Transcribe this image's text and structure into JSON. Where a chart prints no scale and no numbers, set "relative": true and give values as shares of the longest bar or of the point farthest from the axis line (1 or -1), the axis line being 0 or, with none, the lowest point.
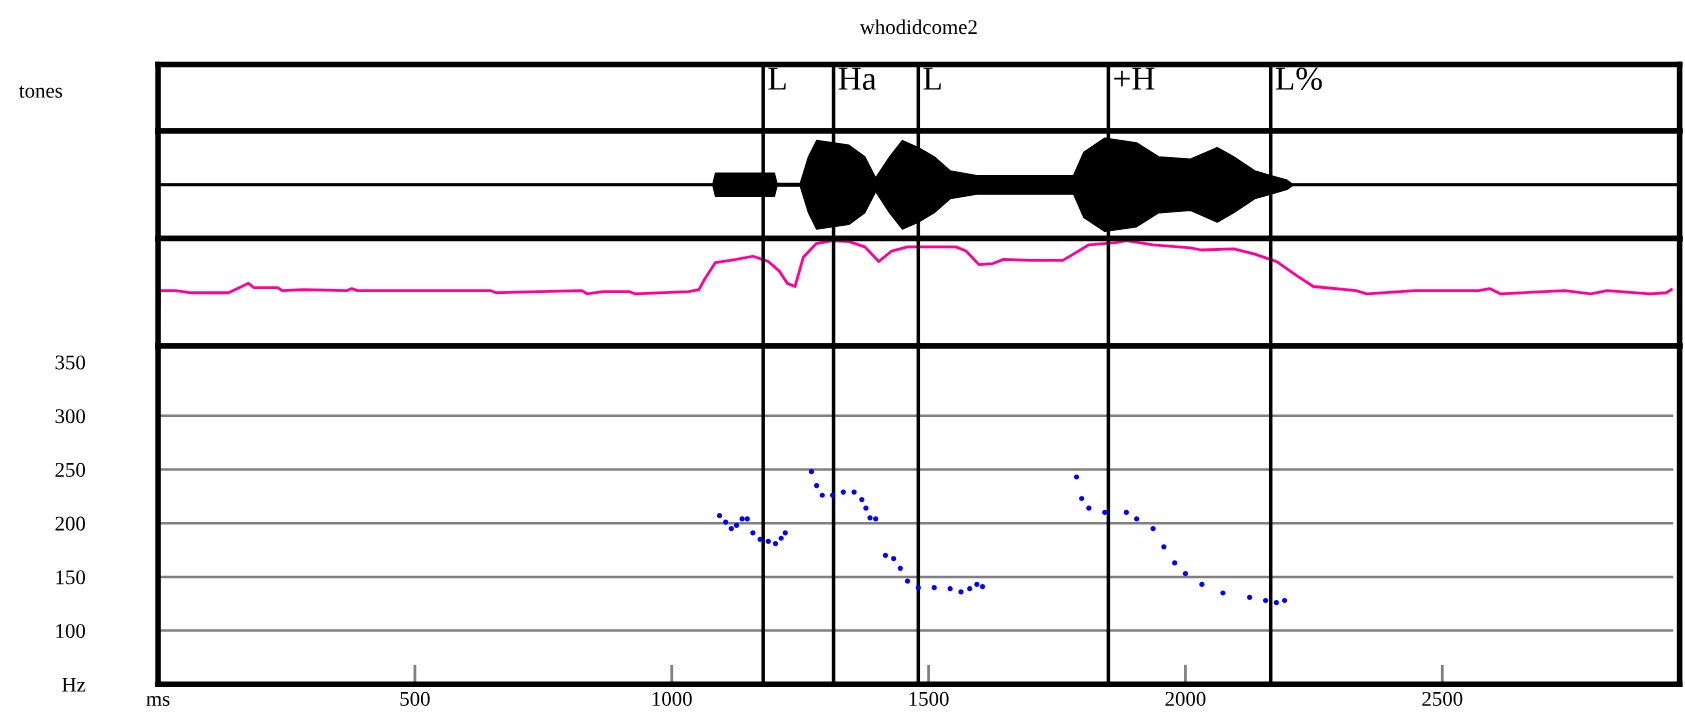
{
  "chart_data": [
    {
      "type": "other",
      "title": "whodidcome2",
      "ylabel": "tones",
      "annotations": [
        "L",
        "Ha",
        "L",
        "+H",
        "L%"
      ]
    },
    {
      "type": "area",
      "relative": true,
      "xlim": [
        0,
        2962
      ],
      "x": [
        0,
        1080,
        1085,
        1200,
        1205,
        1250,
        1266,
        1282,
        1345,
        1376,
        1397,
        1424,
        1449,
        1480,
        1511,
        1542,
        1594,
        1782,
        1802,
        1843,
        1905,
        1948,
        2010,
        2062,
        2094,
        2135,
        2166,
        2198,
        2208,
        2962
      ],
      "series": [
        {
          "color": "#000000",
          "values": [
            0.02,
            0.02,
            0.25,
            0.25,
            0.03,
            0.03,
            0.6,
            0.95,
            0.85,
            0.6,
            0.15,
            0.6,
            0.95,
            0.8,
            0.6,
            0.3,
            0.2,
            0.2,
            0.7,
            1.0,
            0.9,
            0.6,
            0.55,
            0.8,
            0.6,
            0.3,
            0.2,
            0.1,
            0.02,
            0.02
          ]
        }
      ],
      "ref_lines": [
        {
          "axis": "x",
          "value": 1178
        },
        {
          "axis": "x",
          "value": 1315
        },
        {
          "axis": "x",
          "value": 1480
        },
        {
          "axis": "x",
          "value": 1850
        },
        {
          "axis": "x",
          "value": 2166
        }
      ]
    },
    {
      "type": "line",
      "relative": true,
      "xlim": [
        0,
        2962
      ],
      "x": [
        0,
        3,
        34,
        65,
        137,
        159,
        176,
        186,
        232,
        242,
        283,
        367,
        377,
        388,
        648,
        658,
        825,
        835,
        866,
        918,
        928,
        1033,
        1053,
        1064,
        1085,
        1126,
        1158,
        1188,
        1209,
        1225,
        1240,
        1256,
        1281,
        1313,
        1345,
        1376,
        1403,
        1428,
        1459,
        1490,
        1553,
        1573,
        1598,
        1625,
        1646,
        1698,
        1761,
        1782,
        1812,
        1864,
        1885,
        1937,
        2010,
        2031,
        2094,
        2135,
        2177,
        2218,
        2249,
        2332,
        2353,
        2447,
        2571,
        2592,
        2613,
        2738,
        2789,
        2821,
        2904,
        2936,
        2946
      ],
      "series": [
        {
          "color": "#ff0099",
          "values": [
            0,
            0.52,
            0.52,
            0.5,
            0.5,
            0.55,
            0.59,
            0.55,
            0.55,
            0.52,
            0.53,
            0.52,
            0.54,
            0.52,
            0.52,
            0.5,
            0.52,
            0.49,
            0.51,
            0.51,
            0.49,
            0.51,
            0.53,
            0.63,
            0.79,
            0.82,
            0.85,
            0.8,
            0.71,
            0.59,
            0.56,
            0.84,
            0.97,
            1.0,
            0.99,
            0.94,
            0.8,
            0.9,
            0.94,
            0.94,
            0.94,
            0.9,
            0.77,
            0.78,
            0.82,
            0.81,
            0.81,
            0.87,
            0.96,
            0.98,
            1.0,
            0.96,
            0.93,
            0.91,
            0.92,
            0.87,
            0.8,
            0.66,
            0.56,
            0.52,
            0.49,
            0.52,
            0.52,
            0.54,
            0.49,
            0.52,
            0.49,
            0.52,
            0.49,
            0.5,
            0.53
          ]
        }
      ],
      "ref_lines": [
        {
          "axis": "x",
          "value": 1178
        },
        {
          "axis": "x",
          "value": 1315
        },
        {
          "axis": "x",
          "value": 1480
        },
        {
          "axis": "x",
          "value": 1850
        },
        {
          "axis": "x",
          "value": 2166
        }
      ]
    },
    {
      "type": "scatter",
      "marker": "circle",
      "xlim": [
        0,
        2962
      ],
      "ylim": [
        50,
        365
      ],
      "xticks": [
        {
          "value": 0,
          "label": "ms"
        },
        500,
        1000,
        1500,
        2000,
        2500
      ],
      "yticks": [
        {
          "value": 50,
          "label": "Hz"
        },
        100,
        150,
        200,
        250,
        300,
        350
      ],
      "series": [
        {
          "color": "#0000ff",
          "x": [
            1093,
            1105,
            1116,
            1126,
            1137,
            1147,
            1158,
            1172,
            1188,
            1202,
            1213,
            1221
          ],
          "values": [
            207,
            201,
            195,
            198,
            204,
            204,
            191,
            185,
            183,
            181,
            186,
            191
          ]
        },
        {
          "color": "#0000ff",
          "x": [
            1272,
            1282,
            1293,
            1313,
            1334,
            1355,
            1370,
            1378,
            1386,
            1397
          ],
          "values": [
            248,
            235,
            226,
            226,
            229,
            229,
            222,
            214,
            205,
            204
          ]
        },
        {
          "color": "#0000ff",
          "x": [
            1416,
            1432,
            1445,
            1459,
            1480,
            1511,
            1542,
            1563,
            1580,
            1594,
            1605
          ],
          "values": [
            170,
            167,
            158,
            146,
            140,
            140,
            139,
            136,
            139,
            143,
            141
          ]
        },
        {
          "color": "#0000ff",
          "x": [
            1788,
            1798,
            1812,
            1843,
            1885,
            1905,
            1937,
            1958,
            1979,
            2000,
            2032,
            2073,
            2125,
            2156,
            2177,
            2193
          ],
          "values": [
            243,
            223,
            214,
            210,
            210,
            204,
            195,
            178,
            163,
            153,
            143,
            135,
            131,
            128,
            126,
            128
          ]
        }
      ],
      "ref_lines": [
        {
          "axis": "x",
          "value": 1178
        },
        {
          "axis": "x",
          "value": 1315
        },
        {
          "axis": "x",
          "value": 1480
        },
        {
          "axis": "x",
          "value": 1850
        },
        {
          "axis": "x",
          "value": 2166
        },
        {
          "axis": "y",
          "value": 100,
          "color": "#808080"
        },
        {
          "axis": "y",
          "value": 150,
          "color": "#808080"
        },
        {
          "axis": "y",
          "value": 200,
          "color": "#808080"
        },
        {
          "axis": "y",
          "value": 250,
          "color": "#808080"
        },
        {
          "axis": "y",
          "value": 300,
          "color": "#808080"
        }
      ]
    }
  ]
}
